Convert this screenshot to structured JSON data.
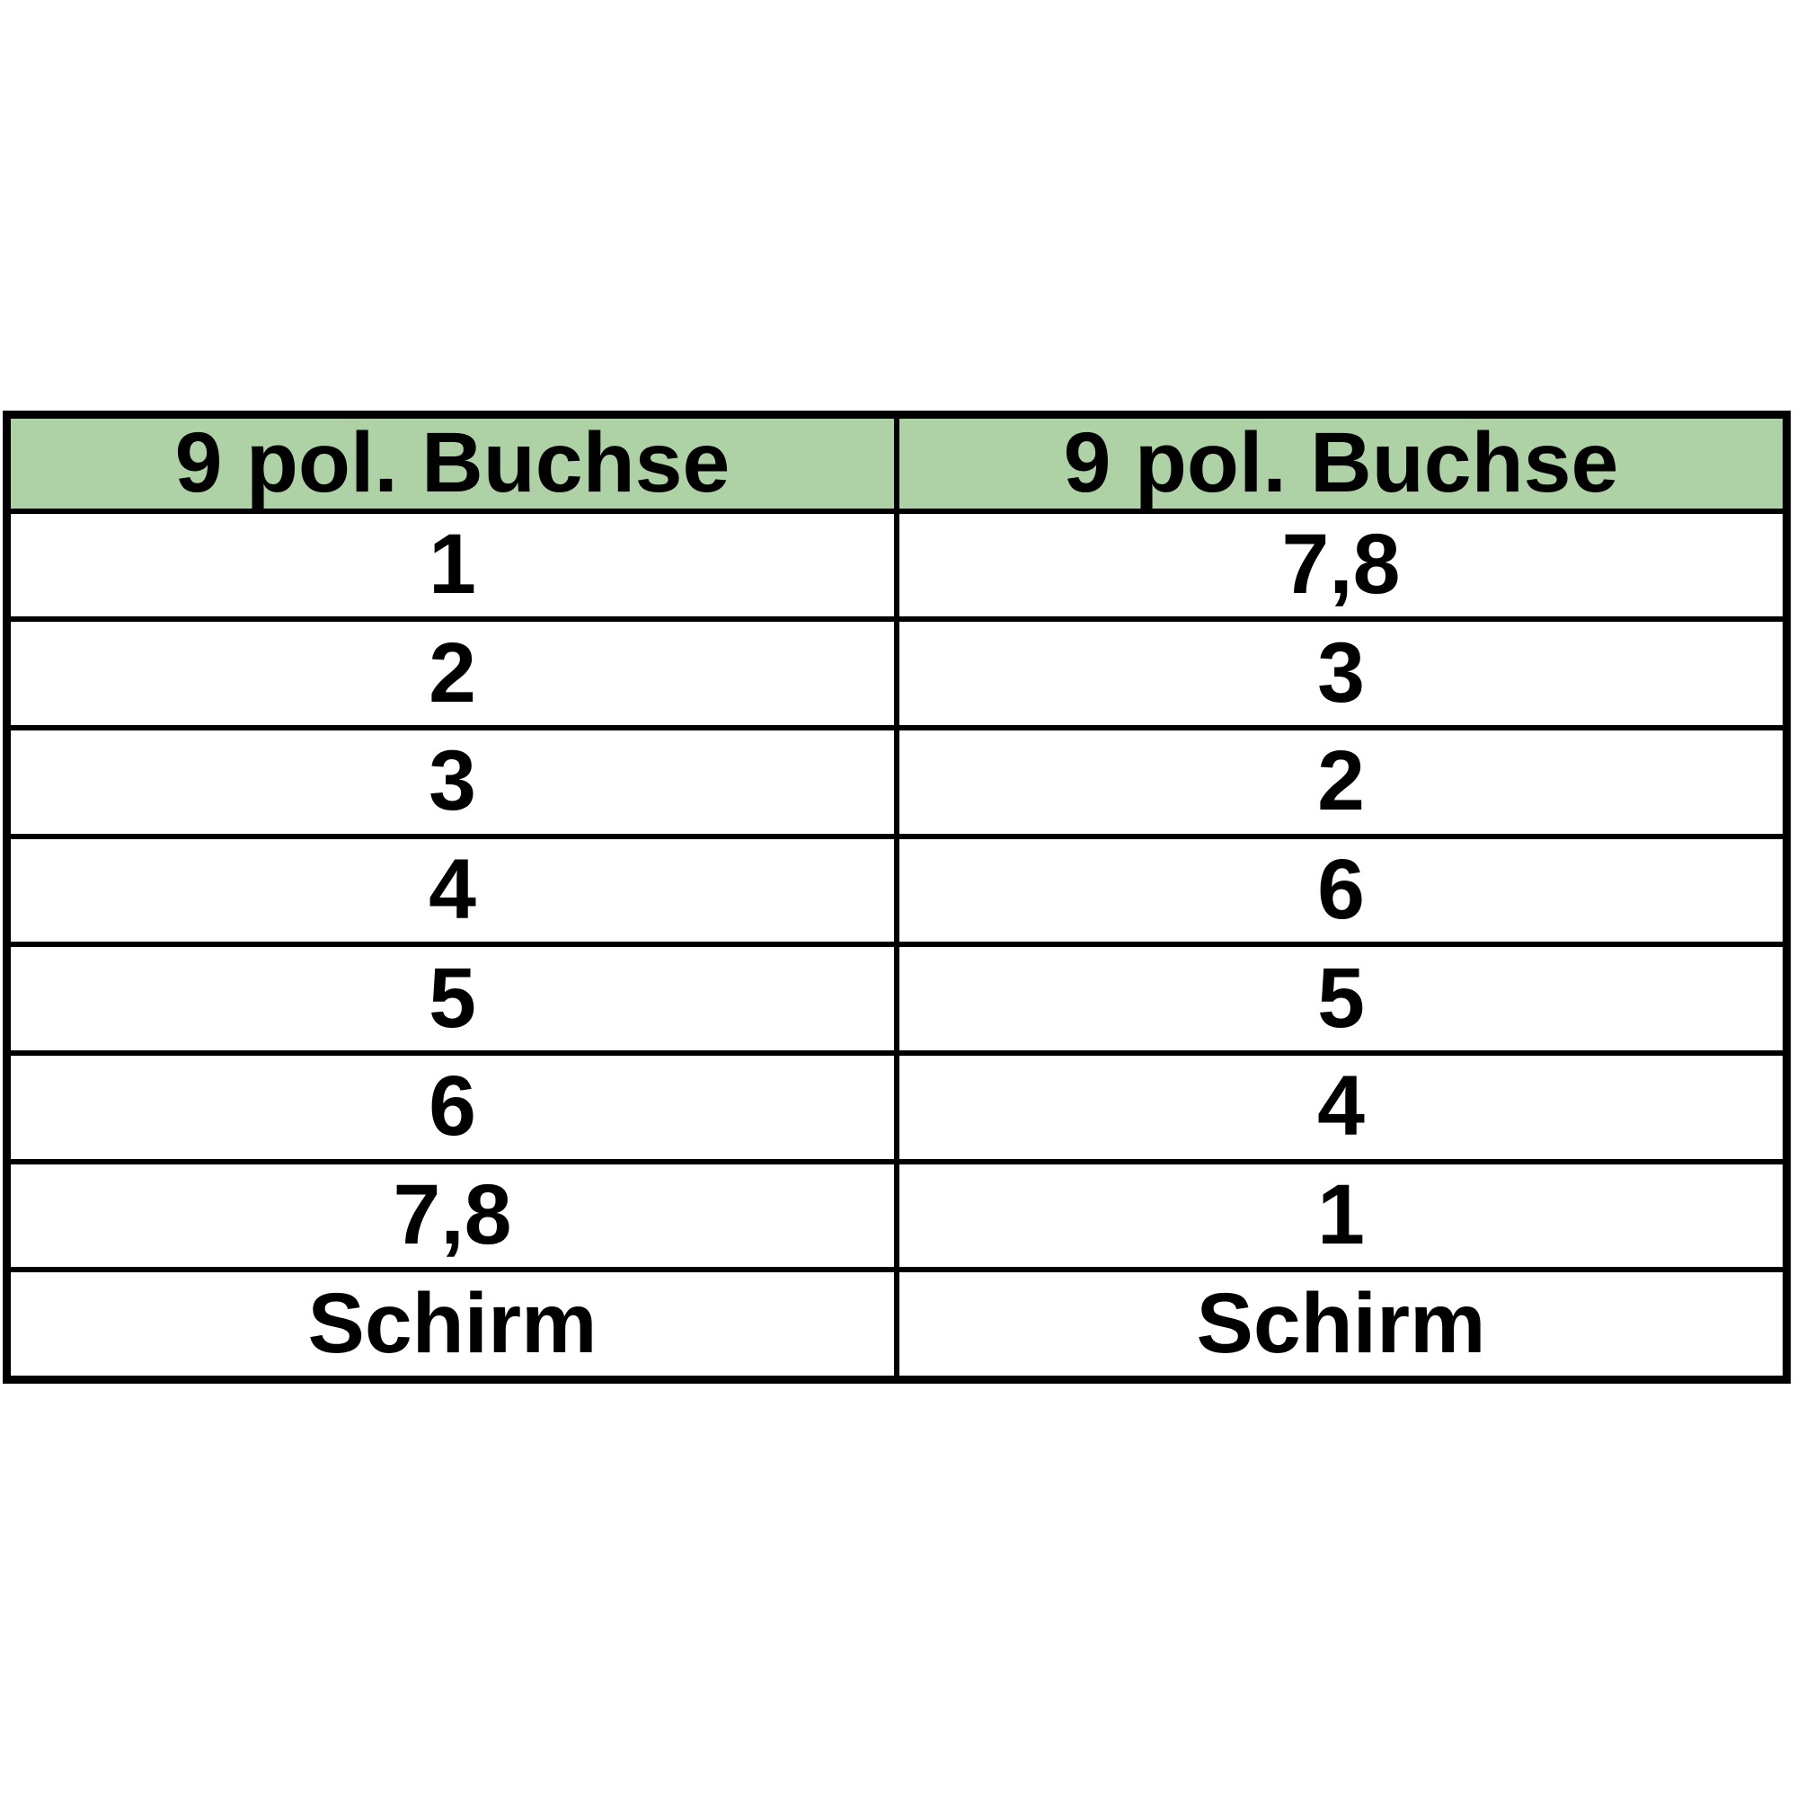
{
  "page": {
    "background": "#ffffff"
  },
  "table": {
    "headers": [
      "9 pol. Buchse",
      "9 pol. Buchse"
    ],
    "rows": [
      [
        "1",
        "7,8"
      ],
      [
        "2",
        "3"
      ],
      [
        "3",
        "2"
      ],
      [
        "4",
        "6"
      ],
      [
        "5",
        "5"
      ],
      [
        "6",
        "4"
      ],
      [
        "7,8",
        "1"
      ],
      [
        "Schirm",
        "Schirm"
      ]
    ],
    "colors": {
      "header_bg": "#aed2a6",
      "border": "#000000",
      "cell_bg": "#ffffff",
      "text": "#000000"
    }
  }
}
